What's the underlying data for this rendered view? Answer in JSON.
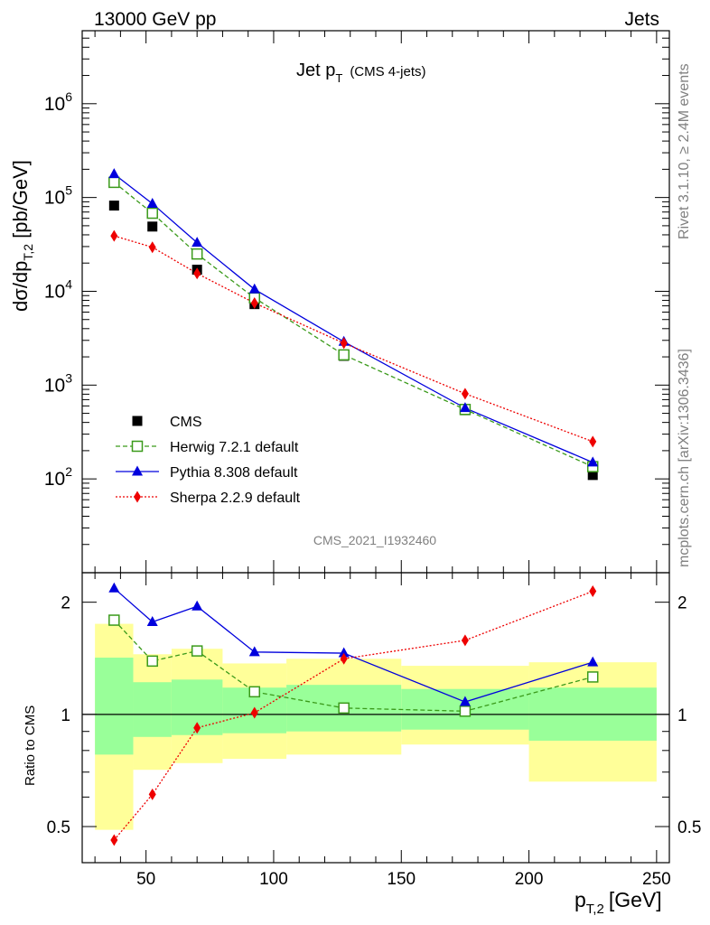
{
  "header": {
    "left": "13000 GeV pp",
    "right": "Jets"
  },
  "title_main": "Jet p",
  "title_sub": "T",
  "title_note": "(CMS 4-jets)",
  "analysis_id": "CMS_2021_I1932460",
  "side_text_top": "Rivet 3.1.10, ≥ 2.4M events",
  "side_text_bottom": "mcplots.cern.ch [arXiv:1306.3436]",
  "ylabel_main": "dσ/dp",
  "ylabel_main_sub": "T,2",
  "ylabel_main_unit": "[pb/GeV]",
  "ylabel_ratio": "Ratio to CMS",
  "xlabel_main": "p",
  "xlabel_sub": "T,2",
  "xlabel_unit": "[GeV]",
  "colors": {
    "data": "#000000",
    "herwig": "#3a9a1a",
    "pythia": "#0000dd",
    "sherpa": "#ee0000",
    "band_inner": "#99ff99",
    "band_outer": "#ffff99"
  },
  "chart_data": [
    {
      "type": "line",
      "scale": "log-y",
      "xlim": [
        25,
        255
      ],
      "ylim": [
        10,
        6000000
      ],
      "x_ticks": [
        50,
        100,
        150,
        200,
        250
      ],
      "y_ticks": [
        {
          "value": 100,
          "base": "10",
          "exp": "2"
        },
        {
          "value": 1000,
          "base": "10",
          "exp": "3"
        },
        {
          "value": 10000,
          "base": "10",
          "exp": "4"
        },
        {
          "value": 100000,
          "base": "10",
          "exp": "5"
        },
        {
          "value": 1000000,
          "base": "10",
          "exp": "6"
        }
      ],
      "x": [
        37.5,
        52.5,
        70,
        92.5,
        127.5,
        175,
        225
      ],
      "series": [
        {
          "name": "CMS",
          "key": "data",
          "marker": "square",
          "values": [
            82000,
            49000,
            17000,
            7300,
            2050,
            540,
            110
          ]
        },
        {
          "name": "Herwig 7.2.1 default",
          "key": "herwig",
          "marker": "open-square",
          "dash": "dashed",
          "values": [
            145000,
            68000,
            25000,
            8500,
            2100,
            550,
            135
          ]
        },
        {
          "name": "Pythia 8.308 default",
          "key": "pythia",
          "marker": "triangle",
          "dash": "solid",
          "values": [
            178000,
            86000,
            33000,
            10500,
            2900,
            570,
            150
          ]
        },
        {
          "name": "Sherpa 2.2.9 default",
          "key": "sherpa",
          "marker": "diamond",
          "dash": "dotted",
          "values": [
            39000,
            29500,
            15500,
            7500,
            2800,
            810,
            250
          ]
        }
      ],
      "legend_position": "bottom-left"
    },
    {
      "type": "line",
      "scale": "log-y",
      "xlim": [
        25,
        255
      ],
      "ylim": [
        0.4,
        2.4
      ],
      "x_ticks": [
        50,
        100,
        150,
        200,
        250
      ],
      "y_ticks": [
        0.5,
        1,
        2
      ],
      "reference": 1,
      "bins": [
        [
          30,
          45
        ],
        [
          45,
          60
        ],
        [
          60,
          80
        ],
        [
          80,
          105
        ],
        [
          105,
          150
        ],
        [
          150,
          200
        ],
        [
          200,
          250
        ]
      ],
      "band_inner": [
        [
          0.78,
          1.42
        ],
        [
          0.87,
          1.22
        ],
        [
          0.88,
          1.24
        ],
        [
          0.89,
          1.18
        ],
        [
          0.9,
          1.2
        ],
        [
          0.91,
          1.17
        ],
        [
          0.85,
          1.18
        ]
      ],
      "band_outer": [
        [
          0.49,
          1.75
        ],
        [
          0.71,
          1.45
        ],
        [
          0.74,
          1.5
        ],
        [
          0.76,
          1.37
        ],
        [
          0.78,
          1.41
        ],
        [
          0.83,
          1.35
        ],
        [
          0.66,
          1.38
        ]
      ],
      "x": [
        37.5,
        52.5,
        70,
        92.5,
        127.5,
        175,
        225
      ],
      "series": [
        {
          "name": "Herwig 7.2.1 default",
          "key": "herwig",
          "marker": "open-square",
          "dash": "dashed",
          "values": [
            1.79,
            1.39,
            1.48,
            1.15,
            1.04,
            1.02,
            1.26
          ]
        },
        {
          "name": "Pythia 8.308 default",
          "key": "pythia",
          "marker": "triangle",
          "dash": "solid",
          "values": [
            2.18,
            1.77,
            1.95,
            1.47,
            1.46,
            1.08,
            1.38
          ]
        },
        {
          "name": "Sherpa 2.2.9 default",
          "key": "sherpa",
          "marker": "diamond",
          "dash": "dotted",
          "values": [
            0.46,
            0.61,
            0.92,
            1.01,
            1.41,
            1.58,
            2.14
          ]
        }
      ]
    }
  ]
}
